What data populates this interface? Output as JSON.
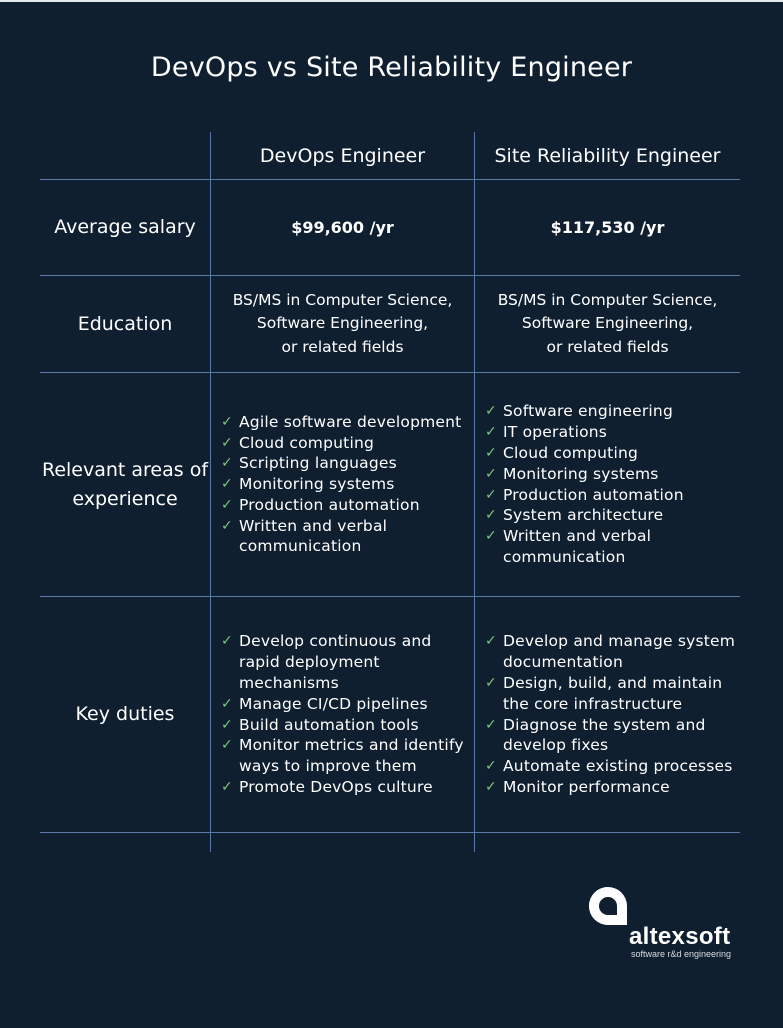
{
  "title": "DevOps vs Site Reliability Engineer",
  "columns": [
    "DevOps Engineer",
    "Site Reliability Engineer"
  ],
  "salary": {
    "label": "Average salary",
    "devops": "$99,600 /yr",
    "sre": "$117,530 /yr"
  },
  "education": {
    "label": "Education",
    "devops": [
      "BS/MS in Computer Science,",
      "Software Engineering,",
      "or related fields"
    ],
    "sre": [
      "BS/MS in Computer Science,",
      "Software Engineering,",
      "or related fields"
    ]
  },
  "experience": {
    "label": "Relevant areas of experience",
    "devops": [
      "Agile software development",
      "Cloud computing",
      "Scripting languages",
      "Monitoring systems",
      "Production automation",
      "Written and verbal communication"
    ],
    "sre": [
      "Software engineering",
      "IT operations",
      "Cloud computing",
      "Monitoring systems",
      "Production automation",
      "System architecture",
      "Written and verbal communication"
    ]
  },
  "duties": {
    "label": "Key duties",
    "devops": [
      "Develop continuous and rapid deployment mechanisms",
      "Manage CI/CD pipelines",
      "Build automation tools",
      "Monitor metrics and identify ways to improve them",
      "Promote DevOps culture"
    ],
    "sre": [
      "Develop and manage system documentation",
      "Design, build, and maintain the core infrastructure",
      "Diagnose the system and develop fixes",
      "Automate existing processes",
      "Monitor performance"
    ]
  },
  "logo": {
    "name": "altexsoft",
    "tagline": "software r&d engineering"
  },
  "check_glyph": "✓",
  "colors": {
    "background": "#0f1f30",
    "grid": "#5a79a6",
    "check": "#7cc47f",
    "text": "#ffffff"
  }
}
